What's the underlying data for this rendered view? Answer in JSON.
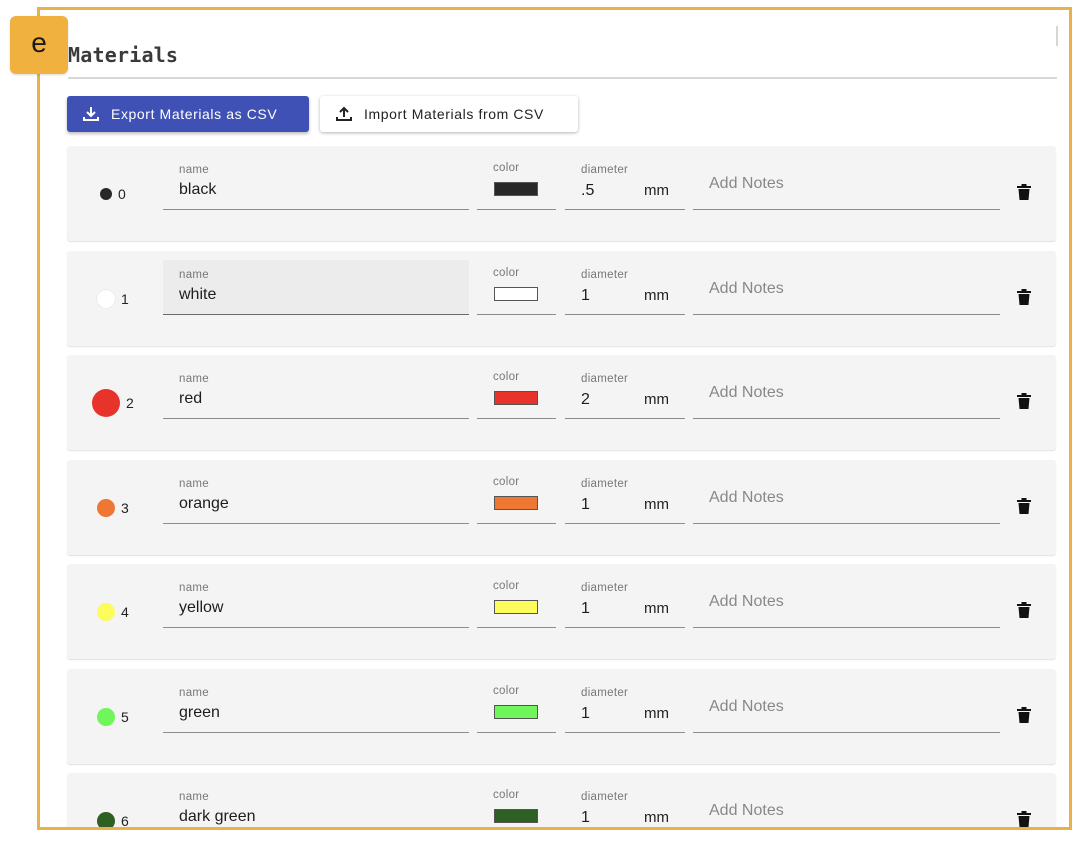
{
  "badge": "e",
  "section_title": "Materials",
  "toolbar": {
    "export_label": "Export Materials as CSV",
    "import_label": "Import Materials from CSV"
  },
  "field_labels": {
    "name": "name",
    "color": "color",
    "diameter": "diameter",
    "unit": "mm",
    "notes_placeholder": "Add Notes"
  },
  "materials": [
    {
      "index": "0",
      "name": "black",
      "diameter": ".5",
      "color": "#282828"
    },
    {
      "index": "1",
      "name": "white",
      "diameter": "1",
      "color": "#ffffff"
    },
    {
      "index": "2",
      "name": "red",
      "diameter": "2",
      "color": "#e8332a"
    },
    {
      "index": "3",
      "name": "orange",
      "diameter": "1",
      "color": "#ed7733"
    },
    {
      "index": "4",
      "name": "yellow",
      "diameter": "1",
      "color": "#fcfc5c"
    },
    {
      "index": "5",
      "name": "green",
      "diameter": "1",
      "color": "#70f55a"
    },
    {
      "index": "6",
      "name": "dark green",
      "diameter": "1",
      "color": "#2e5f23"
    }
  ]
}
